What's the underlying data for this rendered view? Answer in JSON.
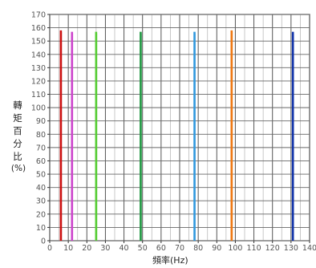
{
  "chart_data": {
    "type": "scatter",
    "title": "",
    "xlabel": "頻率(Hz)",
    "ylabel_chars": [
      "轉",
      "矩",
      "百",
      "分",
      "比"
    ],
    "ylabel_unit": "(%)",
    "xlim": [
      0,
      140
    ],
    "ylim": [
      0,
      170
    ],
    "x_ticks": [
      0,
      10,
      20,
      30,
      40,
      50,
      60,
      70,
      80,
      90,
      100,
      110,
      120,
      130,
      140
    ],
    "y_ticks": [
      0,
      10,
      20,
      30,
      40,
      50,
      60,
      70,
      80,
      90,
      100,
      110,
      120,
      130,
      140,
      150,
      160,
      170
    ],
    "grid": true,
    "series": [
      {
        "x": 6,
        "y_min": 0,
        "y_max": 158,
        "color": "#cc1111"
      },
      {
        "x": 12,
        "y_min": 0,
        "y_max": 157,
        "color": "#cc44cc"
      },
      {
        "x": 25,
        "y_min": 0,
        "y_max": 157,
        "color": "#55cc33"
      },
      {
        "x": 49,
        "y_min": 0,
        "y_max": 157,
        "color": "#229944"
      },
      {
        "x": 78,
        "y_min": 0,
        "y_max": 157,
        "color": "#3399dd"
      },
      {
        "x": 98,
        "y_min": 0,
        "y_max": 158,
        "color": "#ee7711"
      },
      {
        "x": 131,
        "y_min": 0,
        "y_max": 157,
        "color": "#1133aa"
      }
    ]
  }
}
